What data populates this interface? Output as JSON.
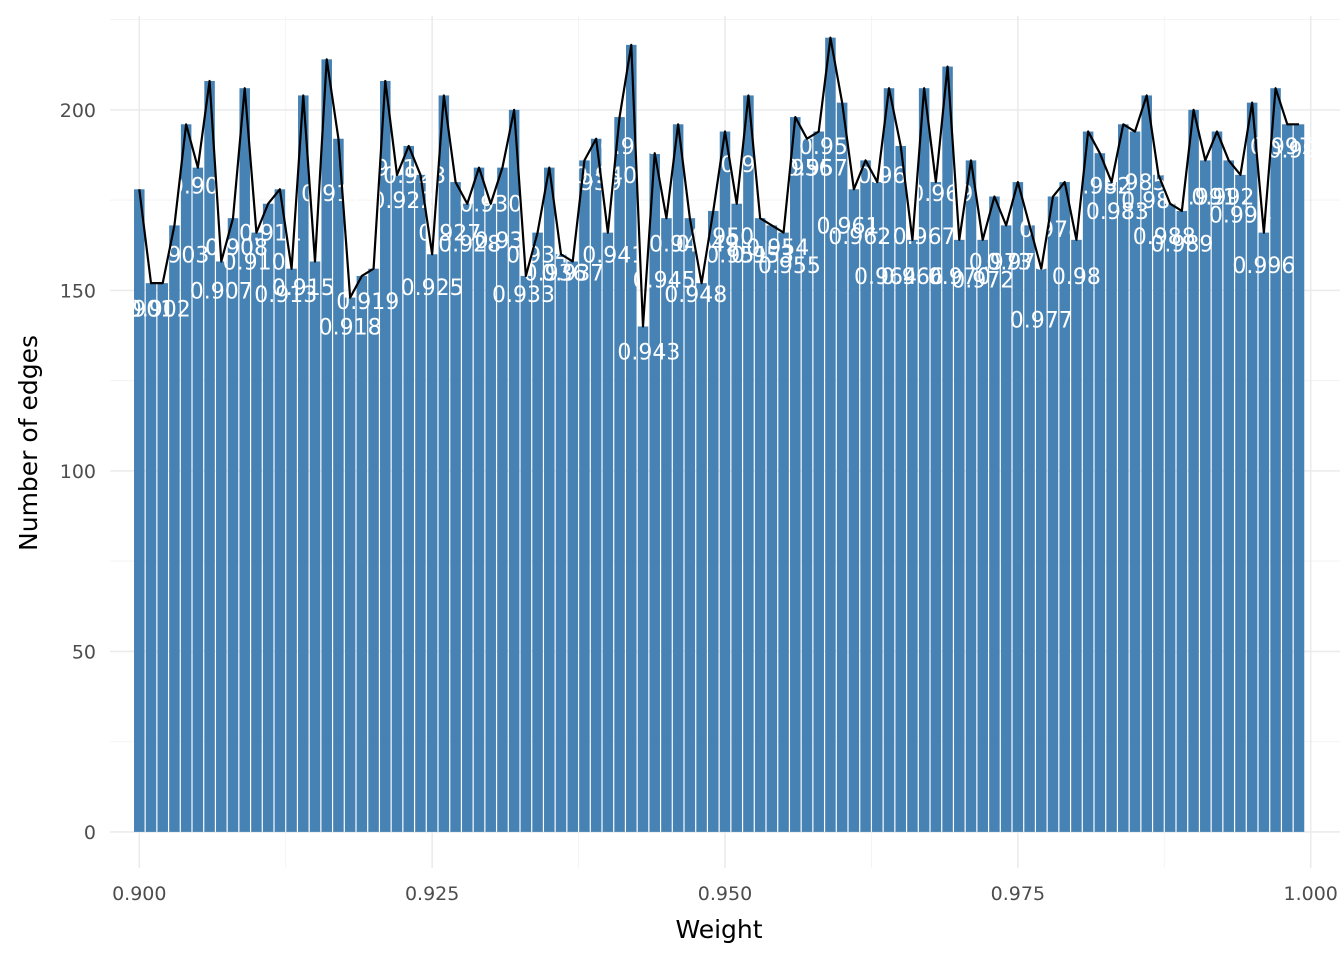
{
  "chart_data": {
    "type": "bar",
    "xlabel": "Weight",
    "ylabel": "Number of edges",
    "xlim": [
      0.8975,
      1.0025
    ],
    "ylim": [
      -10,
      226
    ],
    "x_ticks": [
      0.9,
      0.925,
      0.95,
      0.975,
      1.0
    ],
    "x_tick_labels": [
      "0.900",
      "0.925",
      "0.950",
      "0.975",
      "1.000"
    ],
    "y_ticks": [
      0,
      50,
      100,
      150,
      200
    ],
    "y_tick_labels": [
      "0",
      "50",
      "100",
      "150",
      "200"
    ],
    "grid": true,
    "bar_color": "#4682b4",
    "line_color": "#000000",
    "bin_width": 0.001,
    "overlay": "line through bar tops",
    "x": [
      0.9,
      0.901,
      0.902,
      0.903,
      0.904,
      0.905,
      0.906,
      0.907,
      0.908,
      0.909,
      0.91,
      0.911,
      0.912,
      0.913,
      0.914,
      0.915,
      0.916,
      0.917,
      0.918,
      0.919,
      0.92,
      0.921,
      0.922,
      0.923,
      0.924,
      0.925,
      0.926,
      0.927,
      0.928,
      0.929,
      0.93,
      0.931,
      0.932,
      0.933,
      0.934,
      0.935,
      0.936,
      0.937,
      0.938,
      0.939,
      0.94,
      0.941,
      0.942,
      0.943,
      0.944,
      0.945,
      0.946,
      0.947,
      0.948,
      0.949,
      0.95,
      0.951,
      0.952,
      0.953,
      0.954,
      0.955,
      0.956,
      0.957,
      0.958,
      0.959,
      0.96,
      0.961,
      0.962,
      0.963,
      0.964,
      0.965,
      0.966,
      0.967,
      0.968,
      0.969,
      0.97,
      0.971,
      0.972,
      0.973,
      0.974,
      0.975,
      0.976,
      0.977,
      0.978,
      0.979,
      0.98,
      0.981,
      0.982,
      0.983,
      0.984,
      0.985,
      0.986,
      0.987,
      0.988,
      0.989,
      0.99,
      0.991,
      0.992,
      0.993,
      0.994,
      0.995,
      0.996,
      0.997,
      0.998,
      0.999
    ],
    "values": [
      178,
      152,
      152,
      168,
      196,
      184,
      208,
      158,
      170,
      206,
      166,
      174,
      178,
      156,
      204,
      158,
      214,
      192,
      148,
      154,
      156,
      208,
      182,
      190,
      182,
      160,
      204,
      180,
      174,
      184,
      174,
      184,
      200,
      154,
      166,
      184,
      160,
      158,
      186,
      192,
      166,
      198,
      218,
      140,
      188,
      170,
      196,
      170,
      152,
      172,
      194,
      174,
      204,
      170,
      168,
      166,
      198,
      192,
      194,
      220,
      202,
      178,
      186,
      180,
      206,
      190,
      164,
      206,
      180,
      212,
      164,
      186,
      164,
      176,
      168,
      180,
      168,
      156,
      176,
      180,
      164,
      194,
      188,
      180,
      196,
      194,
      204,
      182,
      174,
      172,
      200,
      186,
      194,
      186,
      182,
      202,
      166,
      206,
      196,
      196
    ],
    "bar_labels": [
      {
        "x": 0.9003,
        "y": 145,
        "text": "0.901"
      },
      {
        "x": 0.9017,
        "y": 145,
        "text": "0.902"
      },
      {
        "x": 0.9033,
        "y": 160,
        "text": "0.903"
      },
      {
        "x": 0.9053,
        "y": 179,
        "text": "0.905"
      },
      {
        "x": 0.907,
        "y": 150,
        "text": "0.907"
      },
      {
        "x": 0.9083,
        "y": 162,
        "text": "0.908"
      },
      {
        "x": 0.9098,
        "y": 158,
        "text": "0.910"
      },
      {
        "x": 0.9112,
        "y": 166,
        "text": "0.911"
      },
      {
        "x": 0.9125,
        "y": 149,
        "text": "0.913"
      },
      {
        "x": 0.914,
        "y": 151,
        "text": "0.915"
      },
      {
        "x": 0.9165,
        "y": 177,
        "text": "0.917"
      },
      {
        "x": 0.918,
        "y": 140,
        "text": "0.918"
      },
      {
        "x": 0.9195,
        "y": 147,
        "text": "0.919"
      },
      {
        "x": 0.921,
        "y": 184,
        "text": "0.921"
      },
      {
        "x": 0.9225,
        "y": 175,
        "text": "0.922"
      },
      {
        "x": 0.9235,
        "y": 182,
        "text": "0.923"
      },
      {
        "x": 0.925,
        "y": 151,
        "text": "0.925"
      },
      {
        "x": 0.9265,
        "y": 166,
        "text": "0.927"
      },
      {
        "x": 0.9282,
        "y": 163,
        "text": "0.928"
      },
      {
        "x": 0.93,
        "y": 174,
        "text": "0.930"
      },
      {
        "x": 0.9313,
        "y": 164,
        "text": "0.931"
      },
      {
        "x": 0.9328,
        "y": 149,
        "text": "0.933"
      },
      {
        "x": 0.934,
        "y": 160,
        "text": "0.934"
      },
      {
        "x": 0.9355,
        "y": 155,
        "text": "0.936"
      },
      {
        "x": 0.937,
        "y": 155,
        "text": "0.937"
      },
      {
        "x": 0.9385,
        "y": 180,
        "text": "0.939"
      },
      {
        "x": 0.9398,
        "y": 182,
        "text": "0.940"
      },
      {
        "x": 0.9405,
        "y": 160,
        "text": "0.941"
      },
      {
        "x": 0.942,
        "y": 190,
        "text": "0.942"
      },
      {
        "x": 0.9435,
        "y": 133,
        "text": "0.943"
      },
      {
        "x": 0.9448,
        "y": 153,
        "text": "0.945"
      },
      {
        "x": 0.9462,
        "y": 163,
        "text": "0.946"
      },
      {
        "x": 0.9475,
        "y": 149,
        "text": "0.948"
      },
      {
        "x": 0.9485,
        "y": 163,
        "text": "0.949"
      },
      {
        "x": 0.9498,
        "y": 165,
        "text": "0.950"
      },
      {
        "x": 0.951,
        "y": 160,
        "text": "0.951"
      },
      {
        "x": 0.9523,
        "y": 185,
        "text": "0.952"
      },
      {
        "x": 0.9532,
        "y": 160,
        "text": "0.953"
      },
      {
        "x": 0.9545,
        "y": 162,
        "text": "0.954"
      },
      {
        "x": 0.9555,
        "y": 157,
        "text": "0.955"
      },
      {
        "x": 0.9565,
        "y": 184,
        "text": "0.956"
      },
      {
        "x": 0.9578,
        "y": 184,
        "text": "0.957"
      },
      {
        "x": 0.959,
        "y": 190,
        "text": "0.959"
      },
      {
        "x": 0.9605,
        "y": 168,
        "text": "0.961"
      },
      {
        "x": 0.9615,
        "y": 165,
        "text": "0.962"
      },
      {
        "x": 0.9637,
        "y": 154,
        "text": "0.964"
      },
      {
        "x": 0.964,
        "y": 182,
        "text": "0.965"
      },
      {
        "x": 0.967,
        "y": 165,
        "text": "0.967"
      },
      {
        "x": 0.966,
        "y": 154,
        "text": "0.966"
      },
      {
        "x": 0.9685,
        "y": 177,
        "text": "0.969"
      },
      {
        "x": 0.97,
        "y": 154,
        "text": "0.970"
      },
      {
        "x": 0.972,
        "y": 153,
        "text": "0.972"
      },
      {
        "x": 0.9735,
        "y": 158,
        "text": "0.973"
      },
      {
        "x": 0.975,
        "y": 158,
        "text": "0.975"
      },
      {
        "x": 0.977,
        "y": 142,
        "text": "0.977"
      },
      {
        "x": 0.9778,
        "y": 167,
        "text": "0.978"
      },
      {
        "x": 0.98,
        "y": 154,
        "text": "0.98"
      },
      {
        "x": 0.982,
        "y": 179,
        "text": "0.982"
      },
      {
        "x": 0.9835,
        "y": 172,
        "text": "0.983"
      },
      {
        "x": 0.985,
        "y": 180,
        "text": "0.985"
      },
      {
        "x": 0.9865,
        "y": 175,
        "text": "0.986"
      },
      {
        "x": 0.9875,
        "y": 165,
        "text": "0.988"
      },
      {
        "x": 0.989,
        "y": 163,
        "text": "0.989"
      },
      {
        "x": 0.991,
        "y": 176,
        "text": "0.991"
      },
      {
        "x": 0.9925,
        "y": 176,
        "text": "0.992"
      },
      {
        "x": 0.994,
        "y": 171,
        "text": "0.994"
      },
      {
        "x": 0.996,
        "y": 157,
        "text": "0.996"
      },
      {
        "x": 0.9975,
        "y": 190,
        "text": "0.997"
      },
      {
        "x": 0.999,
        "y": 189,
        "text": "0.999"
      }
    ]
  }
}
